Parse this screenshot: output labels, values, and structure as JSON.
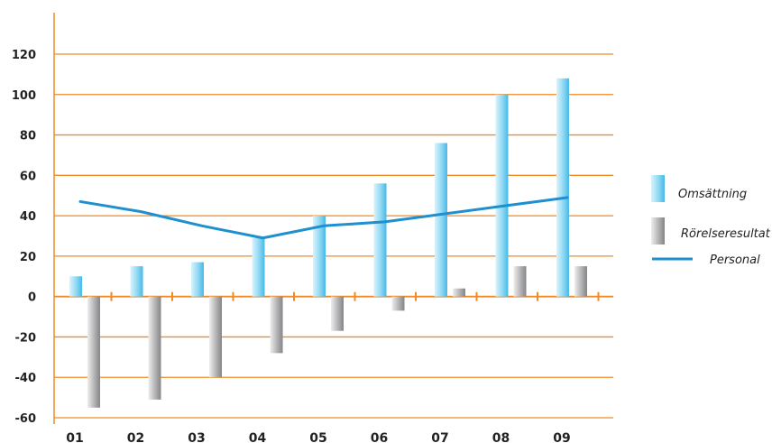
{
  "chart_data": {
    "type": "bar",
    "categories": [
      "01",
      "02",
      "03",
      "04",
      "05",
      "06",
      "07",
      "08",
      "09"
    ],
    "series": [
      {
        "name": "Omsättning",
        "kind": "bar",
        "color": "#7fd3f0",
        "values": [
          10,
          15,
          17,
          29,
          40,
          56,
          76,
          100,
          108
        ]
      },
      {
        "name": "Rörelseresultat",
        "kind": "bar",
        "color": "#a9a9ab",
        "values": [
          -55,
          -51,
          -40,
          -28,
          -17,
          -7,
          4,
          15,
          15
        ]
      },
      {
        "name": "Personal",
        "kind": "line",
        "color": "#1e8fcf",
        "values": [
          47,
          42,
          35,
          29,
          35,
          37,
          41,
          45,
          49
        ]
      }
    ],
    "ylim": [
      -60,
      120
    ],
    "yticks": [
      -60,
      -40,
      -20,
      0,
      20,
      40,
      60,
      80,
      100,
      120
    ],
    "grid": true,
    "grid_color": "#f08a24",
    "legend_position": "right",
    "title": "",
    "xlabel": "",
    "ylabel": ""
  }
}
